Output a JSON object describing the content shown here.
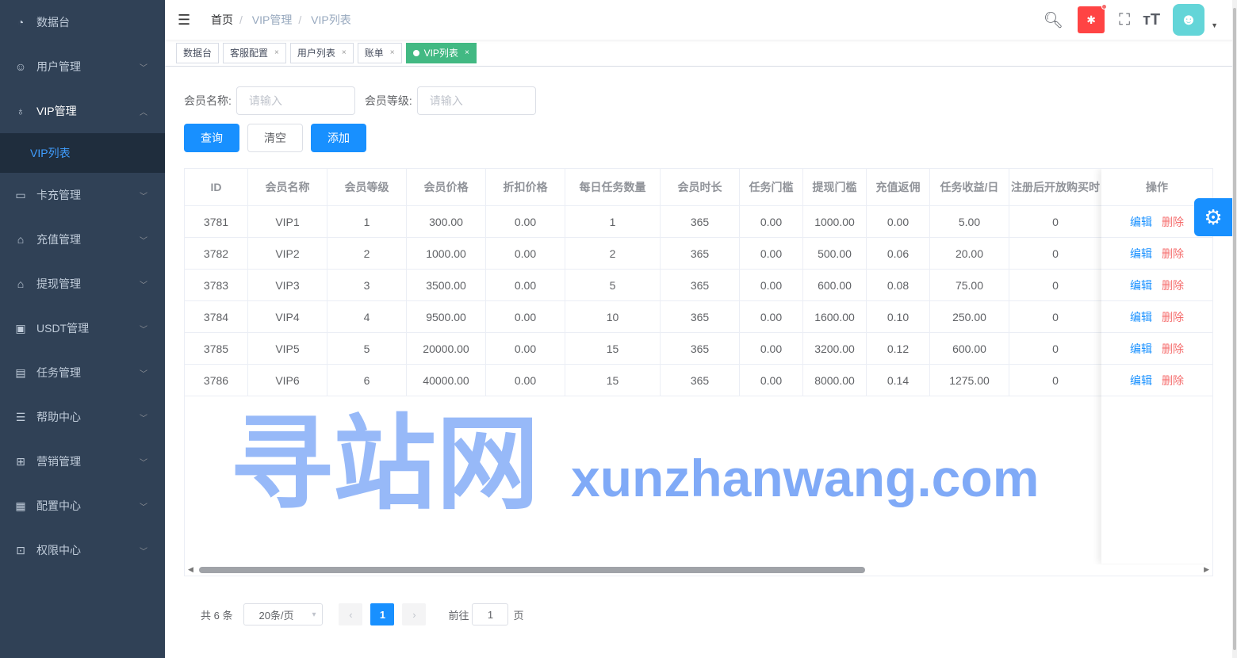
{
  "sidebar": {
    "items": [
      {
        "label": "数据台",
        "icon": "dashboard-icon"
      },
      {
        "label": "用户管理",
        "icon": "user-icon"
      },
      {
        "label": "VIP管理",
        "icon": "medal-icon"
      },
      {
        "label": "卡充管理",
        "icon": "card-icon"
      },
      {
        "label": "充值管理",
        "icon": "bag-icon"
      },
      {
        "label": "提现管理",
        "icon": "bag-icon"
      },
      {
        "label": "USDT管理",
        "icon": "wallet-icon"
      },
      {
        "label": "任务管理",
        "icon": "briefcase-icon"
      },
      {
        "label": "帮助中心",
        "icon": "help-icon"
      },
      {
        "label": "营销管理",
        "icon": "gift-icon"
      },
      {
        "label": "配置中心",
        "icon": "config-icon"
      },
      {
        "label": "权限中心",
        "icon": "lock-icon"
      }
    ],
    "sub_active": "VIP列表"
  },
  "breadcrumb": [
    "首页",
    "VIP管理",
    "VIP列表"
  ],
  "tags": [
    {
      "label": "数据台"
    },
    {
      "label": "客服配置"
    },
    {
      "label": "用户列表"
    },
    {
      "label": "账单"
    },
    {
      "label": "VIP列表",
      "active": true
    }
  ],
  "filters": {
    "name_label": "会员名称:",
    "name_placeholder": "请输入",
    "level_label": "会员等级:",
    "level_placeholder": "请输入"
  },
  "buttons": {
    "query": "查询",
    "clear": "清空",
    "add": "添加"
  },
  "table": {
    "headers": [
      "ID",
      "会员名称",
      "会员等级",
      "会员价格",
      "折扣价格",
      "每日任务数量",
      "会员时长",
      "任务门槛",
      "提现门槛",
      "充值返佣",
      "任务收益/日",
      "注册后开放购买时"
    ],
    "action_header": "操作",
    "edit": "编辑",
    "delete": "删除",
    "rows": [
      [
        "3781",
        "VIP1",
        "1",
        "300.00",
        "0.00",
        "1",
        "365",
        "0.00",
        "1000.00",
        "0.00",
        "5.00",
        "0"
      ],
      [
        "3782",
        "VIP2",
        "2",
        "1000.00",
        "0.00",
        "2",
        "365",
        "0.00",
        "500.00",
        "0.06",
        "20.00",
        "0"
      ],
      [
        "3783",
        "VIP3",
        "3",
        "3500.00",
        "0.00",
        "5",
        "365",
        "0.00",
        "600.00",
        "0.08",
        "75.00",
        "0"
      ],
      [
        "3784",
        "VIP4",
        "4",
        "9500.00",
        "0.00",
        "10",
        "365",
        "0.00",
        "1600.00",
        "0.10",
        "250.00",
        "0"
      ],
      [
        "3785",
        "VIP5",
        "5",
        "20000.00",
        "0.00",
        "15",
        "365",
        "0.00",
        "3200.00",
        "0.12",
        "600.00",
        "0"
      ],
      [
        "3786",
        "VIP6",
        "6",
        "40000.00",
        "0.00",
        "15",
        "365",
        "0.00",
        "8000.00",
        "0.14",
        "1275.00",
        "0"
      ]
    ]
  },
  "pagination": {
    "total": "共 6 条",
    "page_size": "20条/页",
    "current": "1",
    "goto_label": "前往",
    "goto_value": "1",
    "page_suffix": "页"
  },
  "watermark": {
    "cn": "寻站网",
    "en": "xunzhanwang.com"
  },
  "colors": {
    "sidebar": "#304156",
    "primary": "#1890ff",
    "active_tag": "#42b983",
    "danger": "#f56c6c"
  }
}
